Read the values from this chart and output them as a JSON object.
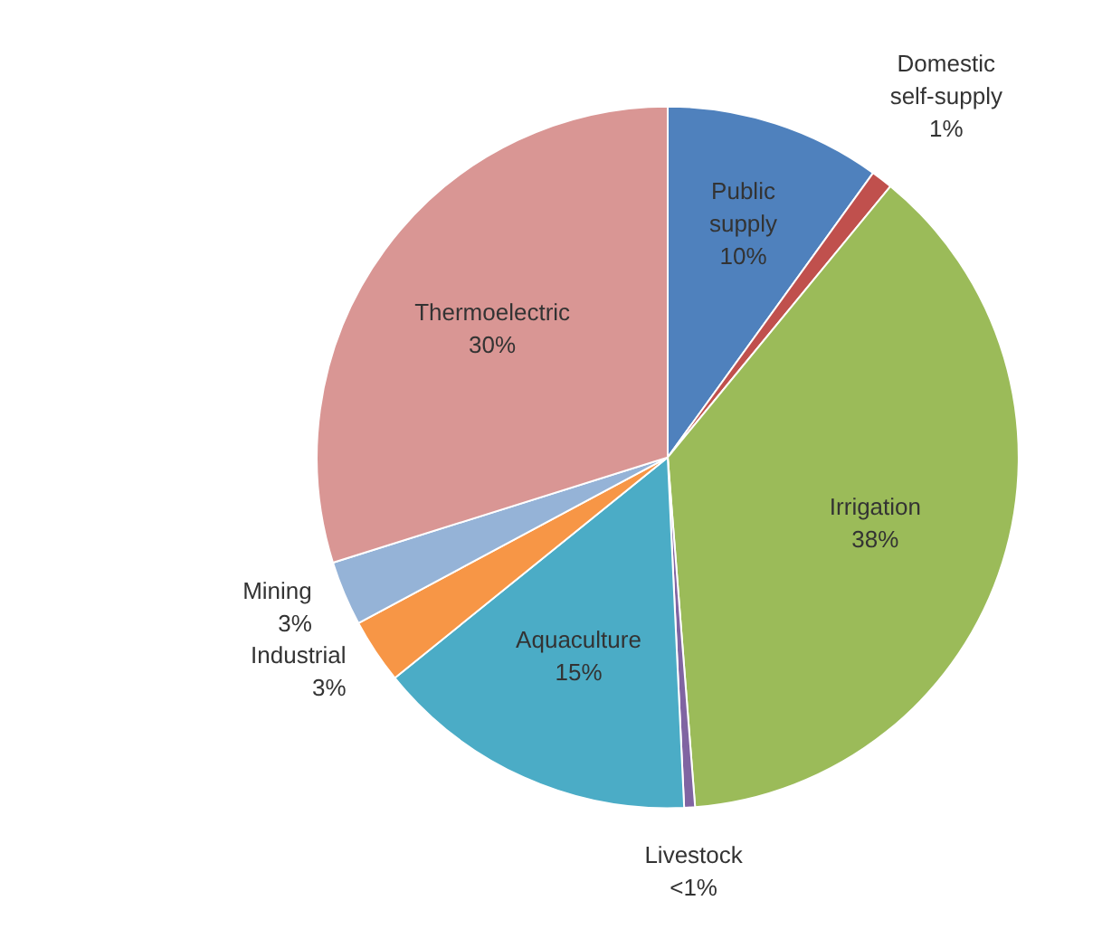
{
  "chart_data": {
    "type": "pie",
    "categories": [
      "Public supply",
      "Domestic self-supply",
      "Irrigation",
      "Livestock",
      "Aquaculture",
      "Industrial",
      "Mining",
      "Thermoelectric"
    ],
    "values": [
      10,
      1,
      38,
      0.5,
      15,
      3,
      3,
      30
    ],
    "value_labels": [
      "10%",
      "1%",
      "38%",
      "<1%",
      "15%",
      "3%",
      "3%",
      "30%"
    ],
    "colors": [
      "#4f81bd",
      "#c0504d",
      "#9bbb59",
      "#8064a2",
      "#4bacc6",
      "#f79646",
      "#95b3d7",
      "#d99694"
    ]
  }
}
